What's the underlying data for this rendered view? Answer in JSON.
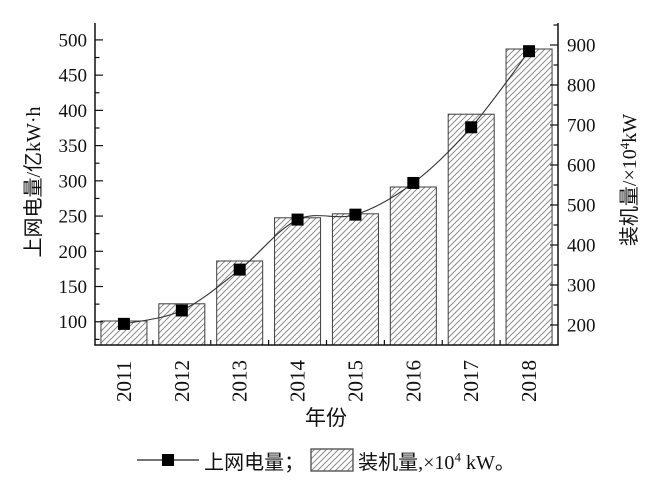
{
  "figure": {
    "background": "#ffffff",
    "ink_color": "#111111",
    "hatch_color": "#8c8c8c",
    "bar_border_color": "#3f3f3f",
    "line_color": "#333333",
    "marker_color": "#000000"
  },
  "chart_data": {
    "type": "bar+line",
    "categories": [
      "2011",
      "2012",
      "2013",
      "2014",
      "2015",
      "2016",
      "2017",
      "2018"
    ],
    "series": [
      {
        "name": "上网电量",
        "type": "line",
        "axis": "left",
        "unit": "亿kW·h",
        "marker": "filled-black-square",
        "values": [
          97,
          116,
          174,
          245,
          252,
          297,
          376,
          484
        ]
      },
      {
        "name": "装机量",
        "type": "bar",
        "axis": "right",
        "unit": "×10⁴ kW",
        "fill": "diagonal-hatch",
        "values": [
          210,
          253,
          360,
          468,
          478,
          545,
          727,
          890
        ]
      }
    ],
    "x_axis": {
      "label": "年份",
      "tick_labels": [
        "2011",
        "2012",
        "2013",
        "2014",
        "2015",
        "2016",
        "2017",
        "2018"
      ],
      "tick_label_rotation_deg": -90
    },
    "left_axis": {
      "label": "上网电量/亿kW·h",
      "major_ticks": [
        100,
        150,
        200,
        250,
        300,
        350,
        400,
        450,
        500
      ],
      "tick_labels": [
        "100",
        "150",
        "200",
        "250",
        "300",
        "350",
        "400",
        "450",
        "500"
      ],
      "range": [
        67,
        524
      ]
    },
    "right_axis": {
      "label": "装机量/×10⁴kW",
      "label_parts": {
        "pre": "装机量/×10",
        "sup": "4",
        "post": "kW"
      },
      "major_ticks": [
        200,
        300,
        400,
        500,
        600,
        700,
        800,
        900
      ],
      "tick_labels": [
        "200",
        "300",
        "400",
        "500",
        "600",
        "700",
        "800",
        "900"
      ],
      "range": [
        150,
        955
      ]
    },
    "grid": false,
    "legend_position": "bottom"
  },
  "legend": {
    "item1_label": "上网电量；",
    "item2_pre": "装机量,×10",
    "item2_sup": "4",
    "item2_post": " kW。"
  }
}
